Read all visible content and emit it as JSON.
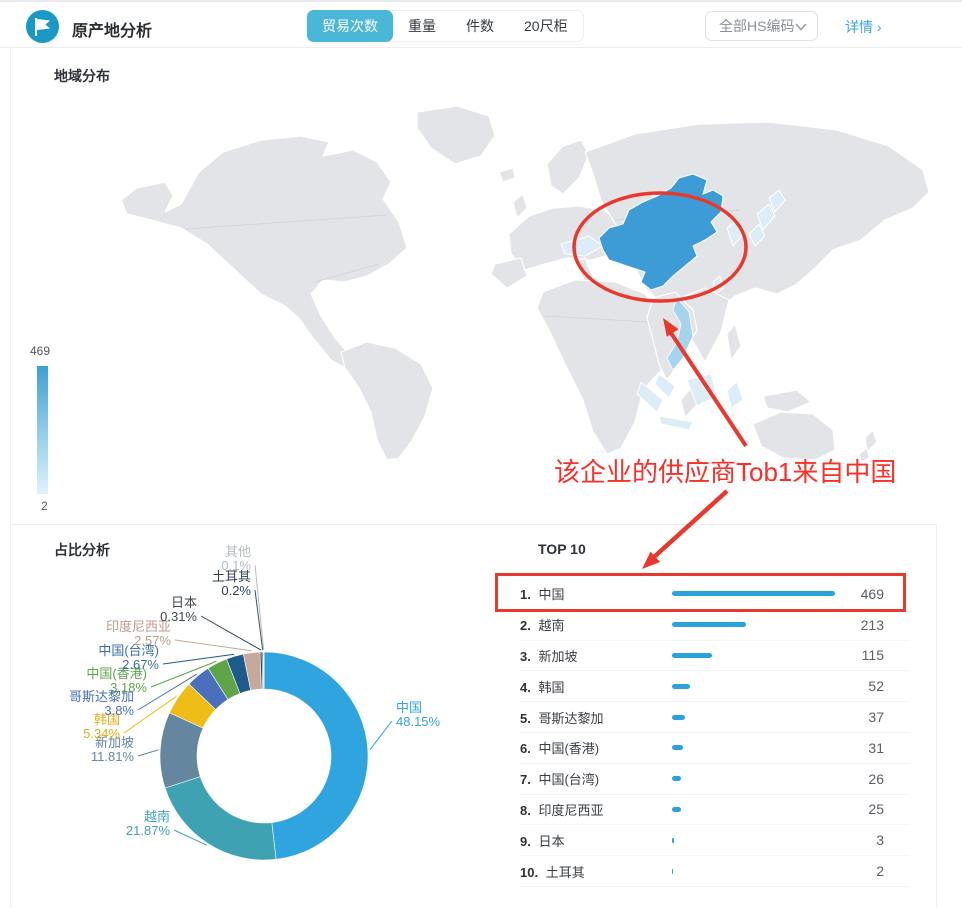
{
  "header": {
    "title": "原产地分析",
    "tabs": [
      {
        "label": "贸易次数",
        "active": true
      },
      {
        "label": "重量",
        "active": false
      },
      {
        "label": "件数",
        "active": false
      },
      {
        "label": "20尺柜",
        "active": false
      }
    ],
    "hs_filter_value": "全部HS编码",
    "detail_link": "详情 ›"
  },
  "map_section": {
    "title": "地域分布",
    "legend": {
      "max": "469",
      "min": "2"
    },
    "primary_highlight": "中国",
    "secondary_highlight": "越南",
    "highlight_color": "#3d9bd5"
  },
  "annotation": {
    "text": "该企业的供应商Tob1来自中国",
    "color": "#fa2f27"
  },
  "donut_section": {
    "title": "占比分析"
  },
  "top10_section": {
    "title": "TOP 10"
  },
  "chart_data": [
    {
      "type": "pie",
      "title": "占比分析",
      "inner_radius_ratio": 0.64,
      "series": [
        {
          "name": "中国",
          "pct": 48.15,
          "color": "#2fa4de",
          "label_color": "#2fa4de"
        },
        {
          "name": "越南",
          "pct": 21.87,
          "color": "#3fa2b2",
          "label_color": "#3fa2b2"
        },
        {
          "name": "新加坡",
          "pct": 11.81,
          "color": "#64869e",
          "label_color": "#64869e"
        },
        {
          "name": "韩国",
          "pct": 5.34,
          "color": "#eebd17",
          "label_color": "#e0af14"
        },
        {
          "name": "哥斯达黎加",
          "pct": 3.8,
          "color": "#4a70bd",
          "label_color": "#4a70bd"
        },
        {
          "name": "中国(香港)",
          "pct": 3.18,
          "color": "#5fa449",
          "label_color": "#5fa449"
        },
        {
          "name": "中国(台湾)",
          "pct": 2.67,
          "color": "#1f5a8c",
          "label_color": "#3a6ea5"
        },
        {
          "name": "印度尼西亚",
          "pct": 2.57,
          "color": "#c7a89a",
          "label_color": "#c09a8b"
        },
        {
          "name": "日本",
          "pct": 0.31,
          "color": "#2f4554",
          "label_color": "#40484f"
        },
        {
          "name": "土耳其",
          "pct": 0.2,
          "color": "#36546e",
          "label_color": "#2f3e50"
        },
        {
          "name": "其他",
          "pct": 0.1,
          "color": "#b5bcc4",
          "label_color": "#b5bcc4"
        }
      ]
    },
    {
      "type": "bar",
      "title": "TOP 10",
      "max": 469,
      "bar_color": "#2aa2dc",
      "items": [
        {
          "rank": "1.",
          "name": "中国",
          "value": 469
        },
        {
          "rank": "2.",
          "name": "越南",
          "value": 213
        },
        {
          "rank": "3.",
          "name": "新加坡",
          "value": 115
        },
        {
          "rank": "4.",
          "name": "韩国",
          "value": 52
        },
        {
          "rank": "5.",
          "name": "哥斯达黎加",
          "value": 37
        },
        {
          "rank": "6.",
          "name": "中国(香港)",
          "value": 31
        },
        {
          "rank": "7.",
          "name": "中国(台湾)",
          "value": 26
        },
        {
          "rank": "8.",
          "name": "印度尼西亚",
          "value": 25
        },
        {
          "rank": "9.",
          "name": "日本",
          "value": 3
        },
        {
          "rank": "10.",
          "name": "土耳其",
          "value": 2
        }
      ]
    }
  ]
}
